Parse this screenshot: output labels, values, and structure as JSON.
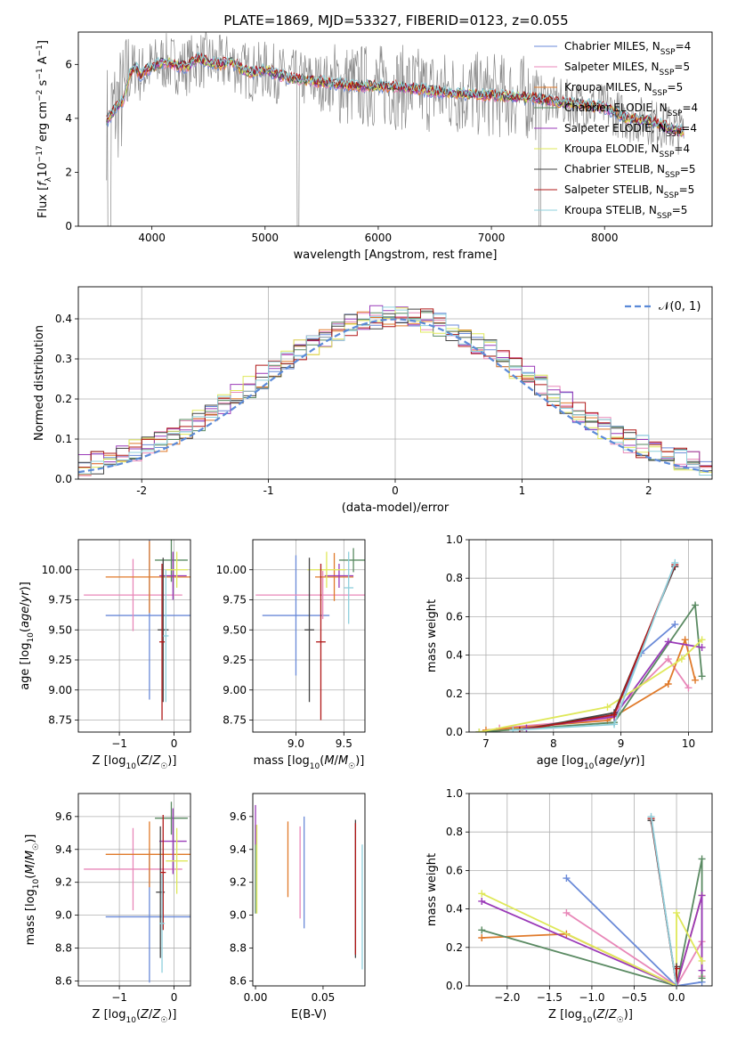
{
  "figure": {
    "title": "PLATE=1869, MJD=53327, FIBERID=0123, z=0.055"
  },
  "colors": {
    "series": [
      "#6a8ad8",
      "#e887b8",
      "#e07a2a",
      "#5a8a62",
      "#9a3ab8",
      "#dfe85a",
      "#444444",
      "#b01818",
      "#8fd0dc"
    ],
    "spectrum_data": "#888888",
    "normal_curve": "#5b8ad8",
    "grid": "#b0b0b0"
  },
  "chart_data": [
    {
      "id": "spectrum",
      "type": "line",
      "xlabel": "wavelength [Angstrom, rest frame]",
      "ylabel": "Flux [f_λ10^−17 erg cm^−2 s^−1 A^−1]",
      "xlim": [
        3350,
        8950
      ],
      "ylim": [
        0,
        7.2
      ],
      "xticks": [
        4000,
        5000,
        6000,
        7000,
        8000
      ],
      "yticks": [
        0,
        2,
        4,
        6
      ],
      "grid": false,
      "legend_position": "right",
      "legend": [
        "Chabrier MILES, N_SSP=4",
        "Salpeter MILES, N_SSP=5",
        "Kroupa MILES, N_SSP=5",
        "Chabrier ELODIE, N_SSP=4",
        "Salpeter ELODIE, N_SSP=4",
        "Kroupa ELODIE, N_SSP=4",
        "Chabrier STELIB, N_SSP=5",
        "Salpeter STELIB, N_SSP=5",
        "Kroupa STELIB, N_SSP=5"
      ],
      "continuum": {
        "x": [
          3600,
          3650,
          3700,
          3750,
          3800,
          3850,
          3900,
          3950,
          4000,
          4100,
          4200,
          4300,
          4400,
          4500,
          4600,
          4700,
          4800,
          4900,
          5000,
          5200,
          5400,
          5600,
          5800,
          6000,
          6200,
          6400,
          6600,
          6800,
          7000,
          7200,
          7400,
          7600,
          7800,
          8000,
          8200,
          8400,
          8600,
          8700
        ],
        "y": [
          3.9,
          4.2,
          4.5,
          4.7,
          5.6,
          5.9,
          5.6,
          5.8,
          5.9,
          6.1,
          6.0,
          5.9,
          6.2,
          6.1,
          6.0,
          6.1,
          5.8,
          5.7,
          5.8,
          5.5,
          5.4,
          5.3,
          5.2,
          5.2,
          5.15,
          5.05,
          4.95,
          4.9,
          4.85,
          4.8,
          4.75,
          4.6,
          4.5,
          4.4,
          4.0,
          3.9,
          3.6,
          3.5
        ]
      }
    },
    {
      "id": "residual-histogram",
      "type": "line",
      "xlabel": "(data-model)/error",
      "ylabel": "Normed distribution",
      "xlim": [
        -2.5,
        2.5
      ],
      "ylim": [
        0,
        0.48
      ],
      "xticks": [
        -2,
        -1,
        0,
        1,
        2
      ],
      "yticks": [
        0.0,
        0.1,
        0.2,
        0.3,
        0.4
      ],
      "grid": true,
      "legend_position": "top-right",
      "legend": [
        "𝒩(0, 1)"
      ],
      "normal": {
        "mean": 0,
        "sigma": 1
      }
    },
    {
      "id": "age-vs-Z",
      "type": "scatter",
      "xlabel": "Z [log10(Z/Z☉)]",
      "ylabel": "age [log10(age/yr)]",
      "xlim": [
        -1.75,
        0.3
      ],
      "ylim": [
        8.65,
        10.25
      ],
      "xticks": [
        -1,
        0
      ],
      "yticks": [
        8.75,
        9.0,
        9.25,
        9.5,
        9.75,
        10.0
      ],
      "grid": true,
      "points": [
        {
          "x": -0.45,
          "xerr": 0.8,
          "y": 9.62,
          "yerr": 0.7
        },
        {
          "x": -0.75,
          "xerr": 0.9,
          "y": 9.79,
          "yerr": 0.3
        },
        {
          "x": -0.45,
          "xerr": 0.8,
          "y": 9.94,
          "yerr": 0.3
        },
        {
          "x": -0.05,
          "xerr": 0.3,
          "y": 10.08,
          "yerr": 0.18
        },
        {
          "x": -0.02,
          "xerr": 0.25,
          "y": 9.95,
          "yerr": 0.2
        },
        {
          "x": 0.05,
          "xerr": 0.2,
          "y": 10.0,
          "yerr": 0.15
        },
        {
          "x": -0.2,
          "xerr": 0.1,
          "y": 9.5,
          "yerr": 0.6
        },
        {
          "x": -0.22,
          "xerr": 0.05,
          "y": 9.4,
          "yerr": 0.65
        },
        {
          "x": -0.15,
          "xerr": 0.05,
          "y": 9.45,
          "yerr": 0.55
        }
      ]
    },
    {
      "id": "age-vs-mass",
      "type": "scatter",
      "xlabel": "mass [log10(M/M☉)]",
      "ylabel": "",
      "xlim": [
        8.55,
        9.72
      ],
      "ylim": [
        8.65,
        10.25
      ],
      "xticks": [
        9.0,
        9.5
      ],
      "yticks": [
        8.75,
        9.0,
        9.25,
        9.5,
        9.75,
        10.0
      ],
      "grid": true,
      "points": [
        {
          "x": 9.0,
          "xerr": 0.35,
          "y": 9.62,
          "yerr": 0.5
        },
        {
          "x": 9.28,
          "xerr": 0.7,
          "y": 9.79,
          "yerr": 0.2
        },
        {
          "x": 9.4,
          "xerr": 0.2,
          "y": 9.94,
          "yerr": 0.2
        },
        {
          "x": 9.6,
          "xerr": 0.15,
          "y": 10.08,
          "yerr": 0.1
        },
        {
          "x": 9.45,
          "xerr": 0.15,
          "y": 9.95,
          "yerr": 0.1
        },
        {
          "x": 9.32,
          "xerr": 0.2,
          "y": 10.0,
          "yerr": 0.15
        },
        {
          "x": 9.14,
          "xerr": 0.05,
          "y": 9.5,
          "yerr": 0.6
        },
        {
          "x": 9.26,
          "xerr": 0.05,
          "y": 9.4,
          "yerr": 0.65
        },
        {
          "x": 9.55,
          "xerr": 0.05,
          "y": 9.85,
          "yerr": 0.3
        }
      ]
    },
    {
      "id": "mass-weight-vs-age",
      "type": "line",
      "xlabel": "age [log10(age/yr)]",
      "ylabel": "mass weight",
      "xlim": [
        6.75,
        10.35
      ],
      "ylim": [
        0,
        1.0
      ],
      "xticks": [
        7,
        8,
        9,
        10
      ],
      "yticks": [
        0.0,
        0.2,
        0.4,
        0.6,
        0.8,
        1.0
      ],
      "grid": true,
      "series": [
        {
          "x": [
            7.6,
            8.9,
            9.3,
            9.8
          ],
          "y": [
            0.02,
            0.09,
            0.41,
            0.56
          ]
        },
        {
          "x": [
            7.2,
            8.8,
            9.7,
            10.0
          ],
          "y": [
            0.02,
            0.07,
            0.38,
            0.23
          ]
        },
        {
          "x": [
            7.0,
            8.8,
            9.7,
            9.95,
            10.1
          ],
          "y": [
            0.01,
            0.06,
            0.25,
            0.48,
            0.27
          ]
        },
        {
          "x": [
            6.9,
            8.9,
            10.1,
            10.2
          ],
          "y": [
            0.0,
            0.05,
            0.66,
            0.29
          ]
        },
        {
          "x": [
            7.6,
            8.9,
            9.7,
            10.2
          ],
          "y": [
            0.02,
            0.08,
            0.47,
            0.44
          ]
        },
        {
          "x": [
            6.9,
            8.8,
            9.9,
            10.2
          ],
          "y": [
            0.0,
            0.13,
            0.38,
            0.48
          ]
        },
        {
          "x": [
            7.5,
            8.9,
            9.8
          ],
          "y": [
            0.01,
            0.1,
            0.86
          ]
        },
        {
          "x": [
            7.5,
            8.9,
            9.8
          ],
          "y": [
            0.01,
            0.09,
            0.87
          ]
        },
        {
          "x": [
            7.4,
            8.9,
            9.8
          ],
          "y": [
            0.01,
            0.04,
            0.88
          ]
        }
      ]
    },
    {
      "id": "mass-vs-Z",
      "type": "scatter",
      "xlabel": "Z [log10(Z/Z☉)]",
      "ylabel": "mass [log10(M/M☉)]",
      "xlim": [
        -1.75,
        0.3
      ],
      "ylim": [
        8.57,
        9.74
      ],
      "xticks": [
        -1,
        0
      ],
      "yticks": [
        8.6,
        8.8,
        9.0,
        9.2,
        9.4,
        9.6
      ],
      "grid": true,
      "points": [
        {
          "x": -0.45,
          "xerr": 0.8,
          "y": 8.99,
          "yerr": 0.4
        },
        {
          "x": -0.75,
          "xerr": 0.9,
          "y": 9.28,
          "yerr": 0.25
        },
        {
          "x": -0.45,
          "xerr": 0.8,
          "y": 9.37,
          "yerr": 0.2
        },
        {
          "x": -0.05,
          "xerr": 0.3,
          "y": 9.59,
          "yerr": 0.1
        },
        {
          "x": -0.02,
          "xerr": 0.25,
          "y": 9.45,
          "yerr": 0.2
        },
        {
          "x": 0.05,
          "xerr": 0.2,
          "y": 9.33,
          "yerr": 0.2
        },
        {
          "x": -0.25,
          "xerr": 0.08,
          "y": 9.14,
          "yerr": 0.4
        },
        {
          "x": -0.2,
          "xerr": 0.05,
          "y": 9.26,
          "yerr": 0.35
        },
        {
          "x": -0.22,
          "xerr": 0.05,
          "y": 8.95,
          "yerr": 0.3
        }
      ]
    },
    {
      "id": "mass-vs-EBV",
      "type": "scatter",
      "xlabel": "E(B-V)",
      "ylabel": "",
      "xlim": [
        -0.002,
        0.081
      ],
      "ylim": [
        8.57,
        9.74
      ],
      "xticks": [
        0.0,
        0.05
      ],
      "yticks": [
        8.6,
        8.8,
        9.0,
        9.2,
        9.4,
        9.6
      ],
      "grid": false,
      "points": [
        {
          "x": 0.036,
          "y": 9.26,
          "yerr": 0.34
        },
        {
          "x": 0.033,
          "y": 9.26,
          "yerr": 0.28
        },
        {
          "x": 0.024,
          "y": 9.34,
          "yerr": 0.23
        },
        {
          "x": 0.0,
          "y": 9.28,
          "yerr": 0.27
        },
        {
          "x": 0.0,
          "y": 9.55,
          "yerr": 0.12
        },
        {
          "x": 0.001,
          "y": 9.28,
          "yerr": 0.27
        },
        {
          "x": 0.074,
          "y": 9.16,
          "yerr": 0.42
        },
        {
          "x": 0.074,
          "y": 9.16,
          "yerr": 0.4
        },
        {
          "x": 0.079,
          "y": 9.05,
          "yerr": 0.38
        }
      ]
    },
    {
      "id": "mass-weight-vs-Z",
      "type": "line",
      "xlabel": "Z [log10(Z/Z☉)]",
      "ylabel": "mass weight",
      "xlim": [
        -2.45,
        0.42
      ],
      "ylim": [
        0,
        1.0
      ],
      "xticks": [
        -2.0,
        -1.5,
        -1.0,
        -0.5,
        0.0
      ],
      "yticks": [
        0.0,
        0.2,
        0.4,
        0.6,
        0.8,
        1.0
      ],
      "grid": true,
      "series": [
        {
          "x": [
            -1.3,
            0.0,
            0.3
          ],
          "y": [
            0.56,
            0.0,
            0.02
          ]
        },
        {
          "x": [
            -1.3,
            0.0,
            0.3,
            0.3
          ],
          "y": [
            0.38,
            0.0,
            0.23,
            0.05
          ]
        },
        {
          "x": [
            -2.3,
            -1.3,
            0.0,
            0.3
          ],
          "y": [
            0.25,
            0.27,
            0.0,
            0.47
          ]
        },
        {
          "x": [
            -2.3,
            0.0,
            0.3,
            0.3
          ],
          "y": [
            0.29,
            0.0,
            0.66,
            0.04
          ]
        },
        {
          "x": [
            -2.3,
            0.0,
            0.3,
            0.3
          ],
          "y": [
            0.44,
            0.0,
            0.47,
            0.08
          ]
        },
        {
          "x": [
            -2.3,
            0.0,
            0.0,
            0.3
          ],
          "y": [
            0.48,
            0.0,
            0.38,
            0.13
          ]
        },
        {
          "x": [
            -0.3,
            0.0,
            0.0
          ],
          "y": [
            0.86,
            0.0,
            0.1
          ]
        },
        {
          "x": [
            -0.3,
            0.0,
            0.0
          ],
          "y": [
            0.87,
            0.0,
            0.09
          ]
        },
        {
          "x": [
            -0.3,
            0.0
          ],
          "y": [
            0.88,
            0.0
          ]
        }
      ]
    }
  ]
}
